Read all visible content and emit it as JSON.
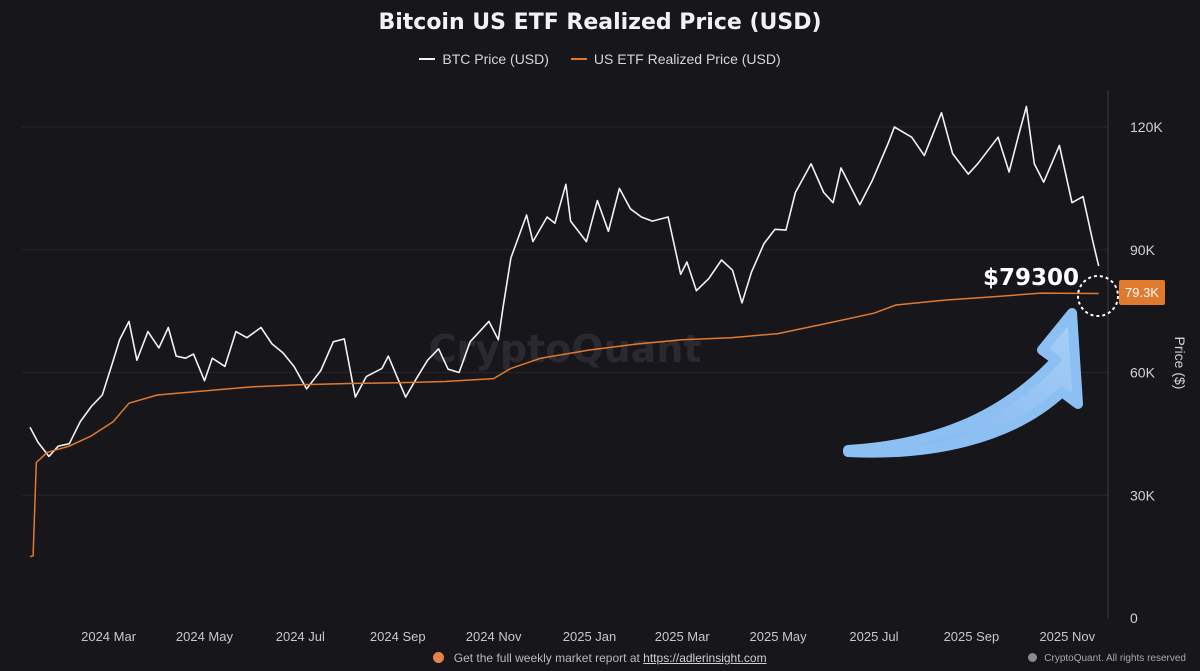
{
  "chart_data": {
    "type": "line",
    "title": "Bitcoin US ETF Realized Price (USD)",
    "ylabel": "Price ($)",
    "ylim": [
      0,
      130000
    ],
    "y_ticks": [
      0,
      30000,
      60000,
      90000,
      120000
    ],
    "y_tick_labels": [
      "0",
      "30K",
      "60K",
      "90K",
      "120K"
    ],
    "x_tick_labels": [
      "2024 Mar",
      "2024 May",
      "2024 Jul",
      "2024 Sep",
      "2024 Nov",
      "2025 Jan",
      "2025 Mar",
      "2025 May",
      "2025 Jul",
      "2025 Sep",
      "2025 Nov"
    ],
    "x_tick_dates": [
      "2024-03-01",
      "2024-05-01",
      "2024-07-01",
      "2024-09-01",
      "2024-11-01",
      "2025-01-01",
      "2025-03-01",
      "2025-05-01",
      "2025-07-01",
      "2025-09-01",
      "2025-11-01"
    ],
    "xlim": [
      "2024-01-11",
      "2025-11-25"
    ],
    "grid": "horizontal",
    "legend_position": "top-center",
    "series": [
      {
        "name": "BTC Price (USD)",
        "color": "#f2f2f2",
        "points": [
          [
            "2024-01-11",
            46600
          ],
          [
            "2024-01-16",
            43000
          ],
          [
            "2024-01-23",
            39500
          ],
          [
            "2024-01-29",
            42000
          ],
          [
            "2024-02-05",
            42600
          ],
          [
            "2024-02-12",
            48000
          ],
          [
            "2024-02-19",
            51700
          ],
          [
            "2024-02-26",
            54500
          ],
          [
            "2024-03-04",
            63000
          ],
          [
            "2024-03-08",
            68000
          ],
          [
            "2024-03-14",
            72500
          ],
          [
            "2024-03-19",
            63000
          ],
          [
            "2024-03-26",
            70000
          ],
          [
            "2024-04-02",
            66000
          ],
          [
            "2024-04-08",
            71000
          ],
          [
            "2024-04-13",
            64000
          ],
          [
            "2024-04-19",
            63500
          ],
          [
            "2024-04-24",
            64500
          ],
          [
            "2024-05-01",
            58000
          ],
          [
            "2024-05-06",
            63500
          ],
          [
            "2024-05-14",
            61500
          ],
          [
            "2024-05-21",
            70000
          ],
          [
            "2024-05-28",
            68500
          ],
          [
            "2024-06-06",
            71000
          ],
          [
            "2024-06-13",
            67000
          ],
          [
            "2024-06-20",
            64800
          ],
          [
            "2024-06-27",
            61500
          ],
          [
            "2024-07-05",
            56000
          ],
          [
            "2024-07-14",
            60500
          ],
          [
            "2024-07-22",
            67500
          ],
          [
            "2024-07-29",
            68200
          ],
          [
            "2024-08-05",
            54000
          ],
          [
            "2024-08-12",
            59000
          ],
          [
            "2024-08-22",
            61000
          ],
          [
            "2024-08-26",
            64000
          ],
          [
            "2024-09-06",
            54000
          ],
          [
            "2024-09-12",
            58000
          ],
          [
            "2024-09-20",
            63000
          ],
          [
            "2024-09-27",
            65800
          ],
          [
            "2024-10-03",
            60800
          ],
          [
            "2024-10-10",
            60000
          ],
          [
            "2024-10-17",
            67500
          ],
          [
            "2024-10-29",
            72500
          ],
          [
            "2024-11-04",
            68000
          ],
          [
            "2024-11-07",
            76000
          ],
          [
            "2024-11-12",
            88000
          ],
          [
            "2024-11-22",
            98500
          ],
          [
            "2024-11-26",
            92000
          ],
          [
            "2024-12-05",
            98000
          ],
          [
            "2024-12-10",
            96500
          ],
          [
            "2024-12-17",
            106000
          ],
          [
            "2024-12-20",
            97000
          ],
          [
            "2024-12-30",
            92000
          ],
          [
            "2025-01-06",
            102000
          ],
          [
            "2025-01-13",
            94500
          ],
          [
            "2025-01-20",
            105000
          ],
          [
            "2025-01-27",
            100000
          ],
          [
            "2025-02-03",
            98000
          ],
          [
            "2025-02-10",
            97000
          ],
          [
            "2025-02-20",
            98000
          ],
          [
            "2025-02-28",
            84000
          ],
          [
            "2025-03-04",
            87000
          ],
          [
            "2025-03-10",
            80000
          ],
          [
            "2025-03-18",
            83000
          ],
          [
            "2025-03-26",
            87500
          ],
          [
            "2025-04-02",
            85000
          ],
          [
            "2025-04-08",
            77000
          ],
          [
            "2025-04-14",
            84500
          ],
          [
            "2025-04-22",
            91500
          ],
          [
            "2025-04-29",
            95000
          ],
          [
            "2025-05-06",
            94800
          ],
          [
            "2025-05-12",
            104000
          ],
          [
            "2025-05-22",
            111000
          ],
          [
            "2025-05-30",
            104000
          ],
          [
            "2025-06-05",
            101500
          ],
          [
            "2025-06-10",
            110000
          ],
          [
            "2025-06-22",
            101000
          ],
          [
            "2025-06-30",
            107000
          ],
          [
            "2025-07-10",
            116000
          ],
          [
            "2025-07-14",
            120000
          ],
          [
            "2025-07-25",
            117500
          ],
          [
            "2025-08-02",
            113000
          ],
          [
            "2025-08-13",
            123500
          ],
          [
            "2025-08-20",
            113500
          ],
          [
            "2025-08-30",
            108500
          ],
          [
            "2025-09-05",
            111000
          ],
          [
            "2025-09-18",
            117500
          ],
          [
            "2025-09-25",
            109000
          ],
          [
            "2025-10-01",
            118000
          ],
          [
            "2025-10-06",
            125000
          ],
          [
            "2025-10-11",
            111000
          ],
          [
            "2025-10-17",
            106500
          ],
          [
            "2025-10-27",
            115500
          ],
          [
            "2025-11-04",
            101500
          ],
          [
            "2025-11-11",
            103000
          ],
          [
            "2025-11-17",
            92500
          ],
          [
            "2025-11-21",
            86000
          ]
        ]
      },
      {
        "name": "US ETF Realized Price (USD)",
        "color": "#e07a2e",
        "points": [
          [
            "2024-01-11",
            15000
          ],
          [
            "2024-01-13",
            15200
          ],
          [
            "2024-01-15",
            38000
          ],
          [
            "2024-01-22",
            40500
          ],
          [
            "2024-02-05",
            42000
          ],
          [
            "2024-02-19",
            44500
          ],
          [
            "2024-03-04",
            48000
          ],
          [
            "2024-03-14",
            52500
          ],
          [
            "2024-04-01",
            54500
          ],
          [
            "2024-05-01",
            55500
          ],
          [
            "2024-06-01",
            56500
          ],
          [
            "2024-07-01",
            57000
          ],
          [
            "2024-08-01",
            57300
          ],
          [
            "2024-09-01",
            57500
          ],
          [
            "2024-10-01",
            57800
          ],
          [
            "2024-11-01",
            58500
          ],
          [
            "2024-11-12",
            61000
          ],
          [
            "2024-12-01",
            63500
          ],
          [
            "2025-01-01",
            65500
          ],
          [
            "2025-02-01",
            67000
          ],
          [
            "2025-03-01",
            68000
          ],
          [
            "2025-04-01",
            68500
          ],
          [
            "2025-05-01",
            69500
          ],
          [
            "2025-06-01",
            72000
          ],
          [
            "2025-07-01",
            74500
          ],
          [
            "2025-07-15",
            76500
          ],
          [
            "2025-08-15",
            77700
          ],
          [
            "2025-09-15",
            78500
          ],
          [
            "2025-10-15",
            79400
          ],
          [
            "2025-11-21",
            79300
          ]
        ]
      }
    ],
    "annotations": [
      {
        "text": "$79300",
        "type": "callout"
      },
      {
        "text": "79.3K",
        "type": "value-badge"
      }
    ]
  },
  "footer": {
    "text": "Get the full weekly market report at",
    "link": "https://adlerinsight.com"
  },
  "copyright": "CryptoQuant. All rights reserved",
  "watermark": "CryptoQuant"
}
